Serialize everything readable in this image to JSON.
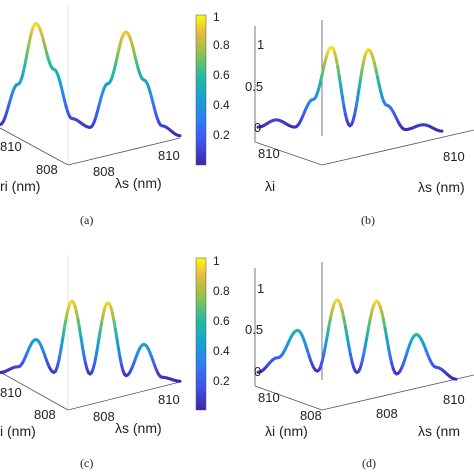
{
  "chart_data": [
    {
      "panel": "(a)",
      "type": "line",
      "x_ticks": [
        "810",
        "808"
      ],
      "y_ticks": [
        "808",
        "810"
      ],
      "x_label": "λi (nm)",
      "y_label": "λs (nm)",
      "z_ticks": [],
      "x": [
        0,
        0.1,
        0.2,
        0.3,
        0.4,
        0.5,
        0.6,
        0.7,
        0.8,
        0.9,
        1
      ],
      "values": [
        0.03,
        0.4,
        0.95,
        0.55,
        0.12,
        0.05,
        0.45,
        0.92,
        0.5,
        0.1,
        0.02
      ],
      "colorbar": {
        "ticks": [
          "0.2",
          "0.4",
          "0.6",
          "0.8",
          "1"
        ],
        "range": [
          0,
          1
        ]
      }
    },
    {
      "panel": "(b)",
      "type": "line",
      "x_ticks": [
        "810",
        ""
      ],
      "y_ticks": [
        "",
        "810"
      ],
      "x_label": "λi",
      "y_label": "λs (nm)",
      "z_ticks": [
        "0",
        "0.5",
        "1"
      ],
      "x": [
        0,
        0.1,
        0.2,
        0.3,
        0.4,
        0.5,
        0.6,
        0.7,
        0.8,
        0.9,
        1
      ],
      "values": [
        0.01,
        0.1,
        0.02,
        0.35,
        0.97,
        0.05,
        0.95,
        0.3,
        0.02,
        0.08,
        0.01
      ]
    },
    {
      "panel": "(c)",
      "type": "line",
      "x_ticks": [
        "810",
        "808"
      ],
      "y_ticks": [
        "808",
        "810"
      ],
      "x_label": "λi (nm)",
      "y_label": "λs (nm)",
      "z_ticks": [],
      "x": [
        0,
        0.1,
        0.2,
        0.3,
        0.4,
        0.5,
        0.6,
        0.7,
        0.8,
        0.9,
        1
      ],
      "values": [
        0.02,
        0.1,
        0.45,
        0.05,
        0.95,
        0.05,
        0.95,
        0.05,
        0.45,
        0.05,
        0.01
      ],
      "colorbar": {
        "ticks": [
          "0.2",
          "0.4",
          "0.6",
          "0.8",
          "1"
        ],
        "range": [
          0,
          1
        ]
      }
    },
    {
      "panel": "(d)",
      "type": "line",
      "x_ticks": [
        "810",
        "808"
      ],
      "y_ticks": [
        "808",
        "810"
      ],
      "x_label": "λi (nm)",
      "y_label": "λs (nm",
      "z_ticks": [
        "0",
        "0.5",
        "1"
      ],
      "x": [
        0,
        0.1,
        0.2,
        0.3,
        0.4,
        0.5,
        0.6,
        0.7,
        0.8,
        0.9,
        1
      ],
      "values": [
        0.01,
        0.2,
        0.55,
        0.05,
        0.95,
        0.05,
        0.95,
        0.05,
        0.55,
        0.15,
        0.01
      ]
    }
  ]
}
